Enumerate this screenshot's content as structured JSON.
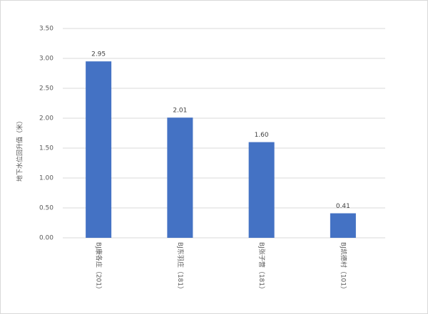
{
  "chart_data": {
    "type": "bar",
    "y_label": "地下水位回升值（米）",
    "categories": [
      "BJ康各庄（201）",
      "BJ东羽庄（181）",
      "BJ张子营（181）",
      "BJ凯德村（101）"
    ],
    "values": [
      2.95,
      2.01,
      1.6,
      0.41
    ],
    "value_labels": [
      "2.95",
      "2.01",
      "1.60",
      "0.41"
    ],
    "color": "#4472c4",
    "ylim": [
      0,
      3.5
    ],
    "yticks": [
      {
        "value": 0,
        "label": "0.00"
      },
      {
        "value": 0.5,
        "label": "0.50"
      },
      {
        "value": 1,
        "label": "1.00"
      },
      {
        "value": 1.5,
        "label": "1.50"
      },
      {
        "value": 2,
        "label": "2.00"
      },
      {
        "value": 2.5,
        "label": "2.50"
      },
      {
        "value": 3,
        "label": "3.00"
      },
      {
        "value": 3.5,
        "label": "3.50"
      }
    ],
    "grid": true
  }
}
